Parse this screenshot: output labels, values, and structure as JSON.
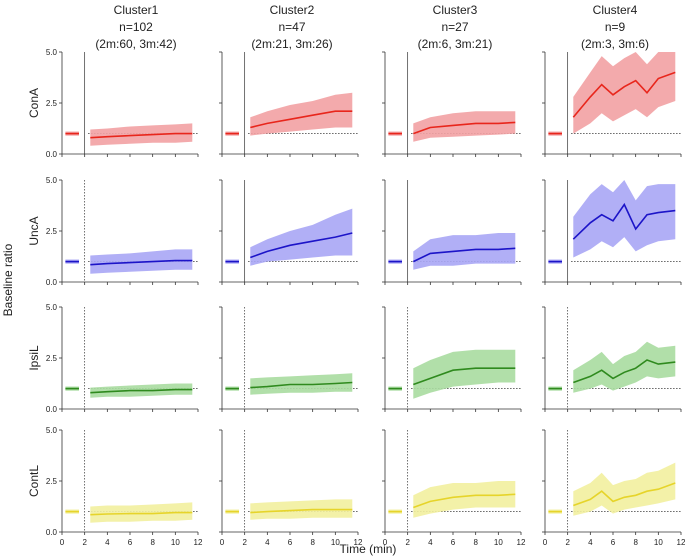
{
  "figure": {
    "ylabel": "Baseline ratio",
    "xlabel": "Time (min)"
  },
  "chart_data": {
    "type": "line",
    "description_rows": [
      "ConA",
      "UncA",
      "IpsiL",
      "ContL"
    ],
    "xlim": [
      0,
      12
    ],
    "ylim": [
      0,
      5
    ],
    "xticks": [
      0,
      2,
      4,
      6,
      8,
      10,
      12
    ],
    "yticks": [
      0.0,
      2.5,
      5.0
    ],
    "ytick_labels": [
      "0.0",
      "2.5",
      "5.0"
    ],
    "xtick_labels": [
      "0",
      "2",
      "4",
      "6",
      "8",
      "10",
      "12"
    ],
    "reference_line": 1.0,
    "stim_time": 2,
    "clusters": [
      {
        "title": "Cluster1",
        "n": "n=102",
        "detail": "(2m:60, 3m:42)"
      },
      {
        "title": "Cluster2",
        "n": "n=47",
        "detail": "(2m:21, 3m:26)"
      },
      {
        "title": "Cluster3",
        "n": "n=27",
        "detail": "(2m:6, 3m:21)"
      },
      {
        "title": "Cluster4",
        "n": "n=9",
        "detail": "(2m:3, 3m:6)"
      }
    ],
    "rows": [
      {
        "name": "ConA",
        "line_color": "#e8261c",
        "fill_color": "#f2a1a3"
      },
      {
        "name": "UncA",
        "line_color": "#1c14c8",
        "fill_color": "#a9a6f5"
      },
      {
        "name": "IpsiL",
        "line_color": "#2f8a1e",
        "fill_color": "#a8dba0"
      },
      {
        "name": "ContL",
        "line_color": "#e6d42a",
        "fill_color": "#f2f09e"
      }
    ],
    "series": [
      {
        "row": "ConA",
        "cluster": "Cluster1",
        "x": [
          2.5,
          4,
          6,
          8,
          10,
          11.5
        ],
        "mean": [
          0.8,
          0.85,
          0.9,
          0.95,
          1.0,
          1.0
        ],
        "lower": [
          0.4,
          0.45,
          0.5,
          0.55,
          0.55,
          0.6
        ],
        "upper": [
          1.2,
          1.25,
          1.35,
          1.4,
          1.45,
          1.5
        ]
      },
      {
        "row": "ConA",
        "cluster": "Cluster2",
        "x": [
          2.5,
          4,
          6,
          8,
          10,
          11.5
        ],
        "mean": [
          1.3,
          1.5,
          1.7,
          1.9,
          2.1,
          2.1
        ],
        "lower": [
          0.9,
          1.0,
          1.1,
          1.2,
          1.3,
          1.3
        ],
        "upper": [
          1.8,
          2.1,
          2.4,
          2.6,
          2.9,
          3.0
        ]
      },
      {
        "row": "ConA",
        "cluster": "Cluster3",
        "x": [
          2.5,
          4,
          6,
          8,
          10,
          11.5
        ],
        "mean": [
          1.0,
          1.3,
          1.4,
          1.5,
          1.5,
          1.55
        ],
        "lower": [
          0.6,
          0.8,
          0.85,
          0.9,
          0.95,
          1.0
        ],
        "upper": [
          1.5,
          1.8,
          2.0,
          2.1,
          2.1,
          2.1
        ]
      },
      {
        "row": "ConA",
        "cluster": "Cluster4",
        "x": [
          2.5,
          4,
          5,
          6,
          7,
          8,
          9,
          10,
          11.5
        ],
        "mean": [
          1.8,
          2.8,
          3.4,
          2.9,
          3.3,
          3.6,
          3.0,
          3.7,
          4.0
        ],
        "lower": [
          1.0,
          1.5,
          2.0,
          1.6,
          1.9,
          2.2,
          1.8,
          2.3,
          2.6
        ],
        "upper": [
          2.8,
          4.0,
          4.8,
          4.3,
          4.7,
          5.0,
          4.4,
          5.0,
          5.0
        ]
      },
      {
        "row": "UncA",
        "cluster": "Cluster1",
        "x": [
          2.5,
          4,
          6,
          8,
          10,
          11.5
        ],
        "mean": [
          0.85,
          0.9,
          0.95,
          1.0,
          1.05,
          1.05
        ],
        "lower": [
          0.4,
          0.45,
          0.5,
          0.55,
          0.6,
          0.6
        ],
        "upper": [
          1.3,
          1.35,
          1.4,
          1.5,
          1.6,
          1.6
        ]
      },
      {
        "row": "UncA",
        "cluster": "Cluster2",
        "x": [
          2.5,
          4,
          6,
          8,
          10,
          11.5
        ],
        "mean": [
          1.2,
          1.5,
          1.8,
          2.0,
          2.2,
          2.4
        ],
        "lower": [
          0.8,
          1.0,
          1.1,
          1.2,
          1.3,
          1.3
        ],
        "upper": [
          1.7,
          2.1,
          2.5,
          2.8,
          3.3,
          3.6
        ]
      },
      {
        "row": "UncA",
        "cluster": "Cluster3",
        "x": [
          2.5,
          4,
          6,
          8,
          10,
          11.5
        ],
        "mean": [
          1.0,
          1.4,
          1.5,
          1.6,
          1.6,
          1.65
        ],
        "lower": [
          0.6,
          0.8,
          0.8,
          0.9,
          0.9,
          0.9
        ],
        "upper": [
          1.5,
          2.1,
          2.3,
          2.3,
          2.4,
          2.4
        ]
      },
      {
        "row": "UncA",
        "cluster": "Cluster4",
        "x": [
          2.5,
          4,
          5,
          6,
          7,
          8,
          9,
          10,
          11.5
        ],
        "mean": [
          2.1,
          2.9,
          3.3,
          3.0,
          3.8,
          2.6,
          3.3,
          3.4,
          3.5
        ],
        "lower": [
          1.2,
          1.6,
          2.0,
          1.7,
          2.2,
          1.5,
          1.8,
          2.0,
          2.1
        ],
        "upper": [
          3.2,
          4.3,
          4.8,
          4.4,
          5.0,
          4.0,
          4.7,
          4.8,
          4.8
        ]
      },
      {
        "row": "IpsiL",
        "cluster": "Cluster1",
        "x": [
          2.5,
          4,
          6,
          8,
          10,
          11.5
        ],
        "mean": [
          0.8,
          0.85,
          0.9,
          0.9,
          0.95,
          0.95
        ],
        "lower": [
          0.55,
          0.6,
          0.6,
          0.65,
          0.7,
          0.7
        ],
        "upper": [
          1.05,
          1.1,
          1.15,
          1.2,
          1.25,
          1.25
        ]
      },
      {
        "row": "IpsiL",
        "cluster": "Cluster2",
        "x": [
          2.5,
          4,
          6,
          8,
          10,
          11.5
        ],
        "mean": [
          1.05,
          1.1,
          1.2,
          1.2,
          1.25,
          1.3
        ],
        "lower": [
          0.7,
          0.75,
          0.8,
          0.8,
          0.85,
          0.85
        ],
        "upper": [
          1.5,
          1.55,
          1.6,
          1.65,
          1.7,
          1.75
        ]
      },
      {
        "row": "IpsiL",
        "cluster": "Cluster3",
        "x": [
          2.5,
          4,
          6,
          8,
          10,
          11.5
        ],
        "mean": [
          1.2,
          1.5,
          1.9,
          2.0,
          2.0,
          2.0
        ],
        "lower": [
          0.5,
          0.8,
          1.1,
          1.2,
          1.3,
          1.3
        ],
        "upper": [
          2.0,
          2.4,
          2.8,
          2.9,
          2.9,
          2.9
        ]
      },
      {
        "row": "IpsiL",
        "cluster": "Cluster4",
        "x": [
          2.5,
          4,
          5,
          6,
          7,
          8,
          9,
          10,
          11.5
        ],
        "mean": [
          1.3,
          1.6,
          1.9,
          1.5,
          1.8,
          2.0,
          2.4,
          2.2,
          2.3
        ],
        "lower": [
          0.8,
          1.0,
          1.2,
          0.9,
          1.1,
          1.3,
          1.6,
          1.5,
          1.6
        ],
        "upper": [
          1.9,
          2.4,
          2.8,
          2.2,
          2.6,
          2.8,
          3.3,
          3.0,
          3.1
        ]
      },
      {
        "row": "ContL",
        "cluster": "Cluster1",
        "x": [
          2.5,
          4,
          6,
          8,
          10,
          11.5
        ],
        "mean": [
          0.85,
          0.88,
          0.9,
          0.9,
          0.95,
          0.95
        ],
        "lower": [
          0.45,
          0.5,
          0.5,
          0.55,
          0.55,
          0.6
        ],
        "upper": [
          1.25,
          1.3,
          1.3,
          1.35,
          1.4,
          1.45
        ]
      },
      {
        "row": "ContL",
        "cluster": "Cluster2",
        "x": [
          2.5,
          4,
          6,
          8,
          10,
          11.5
        ],
        "mean": [
          0.95,
          1.0,
          1.05,
          1.1,
          1.1,
          1.1
        ],
        "lower": [
          0.6,
          0.65,
          0.65,
          0.7,
          0.7,
          0.7
        ],
        "upper": [
          1.4,
          1.45,
          1.5,
          1.55,
          1.6,
          1.6
        ]
      },
      {
        "row": "ContL",
        "cluster": "Cluster3",
        "x": [
          2.5,
          4,
          6,
          8,
          10,
          11.5
        ],
        "mean": [
          1.2,
          1.5,
          1.7,
          1.8,
          1.8,
          1.85
        ],
        "lower": [
          0.7,
          0.9,
          1.1,
          1.2,
          1.2,
          1.2
        ],
        "upper": [
          1.8,
          2.2,
          2.4,
          2.4,
          2.5,
          2.5
        ]
      },
      {
        "row": "ContL",
        "cluster": "Cluster4",
        "x": [
          2.5,
          4,
          5,
          6,
          7,
          8,
          9,
          10,
          11.5
        ],
        "mean": [
          1.3,
          1.6,
          2.0,
          1.5,
          1.7,
          1.8,
          2.0,
          2.1,
          2.4
        ],
        "lower": [
          0.8,
          1.0,
          1.3,
          0.9,
          1.1,
          1.2,
          1.3,
          1.4,
          1.6
        ],
        "upper": [
          2.0,
          2.4,
          2.9,
          2.3,
          2.5,
          2.6,
          2.9,
          3.0,
          3.4
        ]
      }
    ],
    "baseline_segment": {
      "x": [
        0.3,
        1.5
      ],
      "mean": 1.0,
      "lower": 0.9,
      "upper": 1.1
    }
  }
}
